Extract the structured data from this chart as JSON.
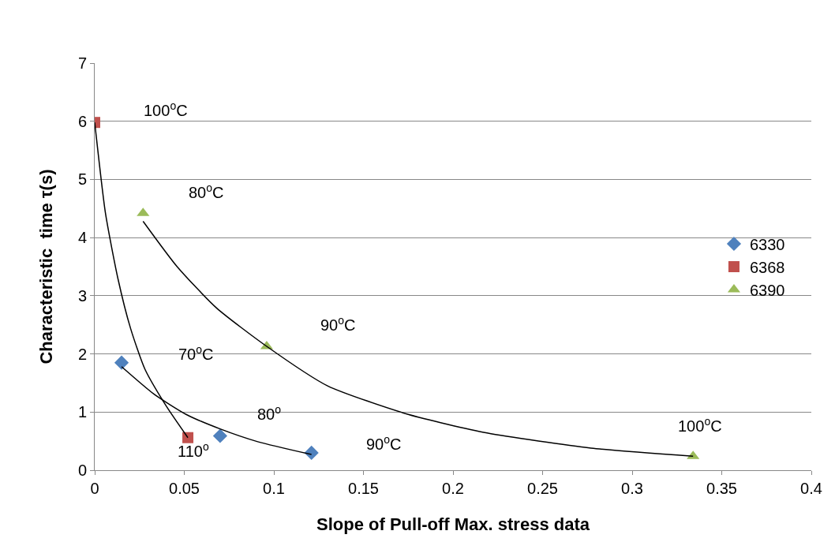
{
  "chart_data": {
    "type": "scatter",
    "xlabel": "Slope of Pull-off Max. stress data",
    "ylabel": "Characteristic  time τ(s)",
    "xlim": [
      0,
      0.4
    ],
    "xticks": [
      0,
      0.05,
      0.1,
      0.15,
      0.2,
      0.25,
      0.3,
      0.35,
      0.4
    ],
    "ylim": [
      0,
      7
    ],
    "yticks": [
      0,
      1,
      2,
      3,
      4,
      5,
      6,
      7
    ],
    "grid": "y",
    "legend": "right",
    "series": [
      {
        "name": "6330",
        "color": "#4f81bd",
        "marker": "diamond",
        "x": [
          0.015,
          0.07,
          0.121
        ],
        "values": [
          1.85,
          0.59,
          0.3
        ]
      },
      {
        "name": "6368",
        "color": "#c0504d",
        "marker": "square",
        "x": [
          0,
          0.052
        ],
        "values": [
          5.98,
          0.56
        ]
      },
      {
        "name": "6390",
        "color": "#9bbb59",
        "marker": "triangle",
        "x": [
          0.027,
          0.096,
          0.334
        ],
        "values": [
          4.42,
          2.13,
          0.24
        ]
      },
      {
        "type": "line",
        "color": "#000000",
        "marker": "none",
        "x": [
          0.015,
          0.033,
          0.051,
          0.07,
          0.091,
          0.121
        ],
        "values": [
          1.78,
          1.31,
          0.96,
          0.71,
          0.49,
          0.27
        ]
      },
      {
        "type": "line",
        "color": "#000000",
        "marker": "none",
        "x": [
          0,
          0.006,
          0.013,
          0.02,
          0.028,
          0.04,
          0.052
        ],
        "values": [
          5.98,
          4.42,
          3.29,
          2.44,
          1.74,
          1.1,
          0.56
        ]
      },
      {
        "type": "line",
        "color": "#000000",
        "marker": "none",
        "x": [
          0.027,
          0.046,
          0.068,
          0.096,
          0.13,
          0.175,
          0.219,
          0.277,
          0.334
        ],
        "values": [
          4.28,
          3.5,
          2.79,
          2.13,
          1.45,
          0.96,
          0.64,
          0.38,
          0.24
        ]
      }
    ],
    "annotations": [
      "100$^{o}$C",
      "80$^{o}$C",
      "90$^{o}$C",
      "70$^{o}$C",
      "80$^{o}$",
      "110$^{o}$",
      "90$^{o}$C",
      "100$^{o}$C"
    ]
  }
}
